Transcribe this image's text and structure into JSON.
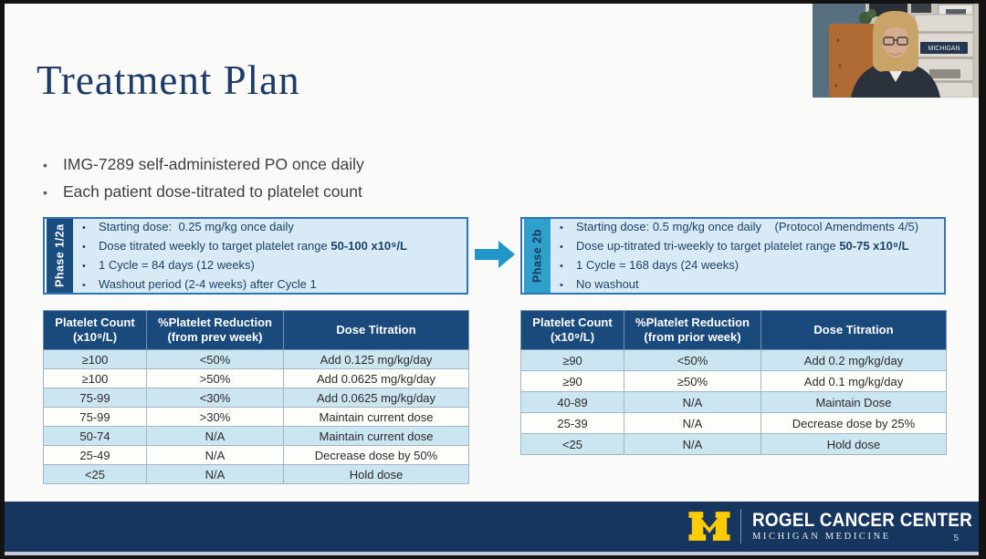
{
  "slide": {
    "title": "Treatment Plan",
    "bullets": [
      "IMG-7289 self-administered PO once daily",
      "Each patient dose-titrated to platelet count"
    ],
    "page_number": "5"
  },
  "phase_boxes": [
    {
      "label": "Phase 1/2a",
      "items": [
        [
          {
            "t": "Starting dose:  0.25 mg/kg once daily"
          }
        ],
        [
          {
            "t": "Dose titrated weekly to target platelet range "
          },
          {
            "t": "50-100 x10⁹/L",
            "b": true
          }
        ],
        [
          {
            "t": "1 Cycle = 84 days (12 weeks)"
          }
        ],
        [
          {
            "t": "Washout period (2-4 weeks) after Cycle 1"
          }
        ]
      ]
    },
    {
      "label": "Phase 2b",
      "items": [
        [
          {
            "t": "Starting dose: 0.5 mg/kg once daily    (Protocol Amendments 4/5)"
          }
        ],
        [
          {
            "t": "Dose up-titrated tri-weekly to target platelet range "
          },
          {
            "t": "50-75 x10⁹/L",
            "b": true
          }
        ],
        [
          {
            "t": "1 Cycle = 168 days (24 weeks)"
          }
        ],
        [
          {
            "t": "No washout"
          }
        ]
      ]
    }
  ],
  "tables": [
    {
      "headers": [
        "Platelet Count\n(x10⁹/L)",
        "%Platelet Reduction\n(from prev week)",
        "Dose Titration"
      ],
      "rows": [
        [
          "≥100",
          "<50%",
          "Add 0.125 mg/kg/day"
        ],
        [
          "≥100",
          ">50%",
          "Add 0.0625 mg/kg/day"
        ],
        [
          "75-99",
          "<30%",
          "Add 0.0625 mg/kg/day"
        ],
        [
          "75-99",
          ">30%",
          "Maintain current dose"
        ],
        [
          "50-74",
          "N/A",
          "Maintain current dose"
        ],
        [
          "25-49",
          "N/A",
          "Decrease dose by 50%"
        ],
        [
          "<25",
          "N/A",
          "Hold dose"
        ]
      ]
    },
    {
      "headers": [
        "Platelet Count\n(x10⁹/L)",
        "%Platelet Reduction\n(from prior week)",
        "Dose Titration"
      ],
      "rows": [
        [
          "≥90",
          "<50%",
          "Add 0.2 mg/kg/day"
        ],
        [
          "≥90",
          "≥50%",
          "Add 0.1 mg/kg/day"
        ],
        [
          "40-89",
          "N/A",
          "Maintain Dose"
        ],
        [
          "25-39",
          "N/A",
          "Decrease dose by 25%"
        ],
        [
          "<25",
          "N/A",
          "Hold dose"
        ]
      ]
    }
  ],
  "footer": {
    "org_name": "ROGEL CANCER CENTER",
    "org_subtitle": "MICHIGAN MEDICINE"
  },
  "webcam": {
    "shelf_sign": "MICHIGAN"
  },
  "colors": {
    "title_navy": "#1E3A66",
    "phase1_tab": "#1B4E80",
    "phase2_tab": "#2FA0C9",
    "box_bg": "#D8EAF5",
    "box_border": "#2E75B6",
    "arrow_blue": "#2196C9",
    "table_header_bg": "#1A4A7C",
    "row_alt_bg": "#CBE5F1",
    "footer_navy": "#16365F",
    "maize": "#FFCB05"
  }
}
